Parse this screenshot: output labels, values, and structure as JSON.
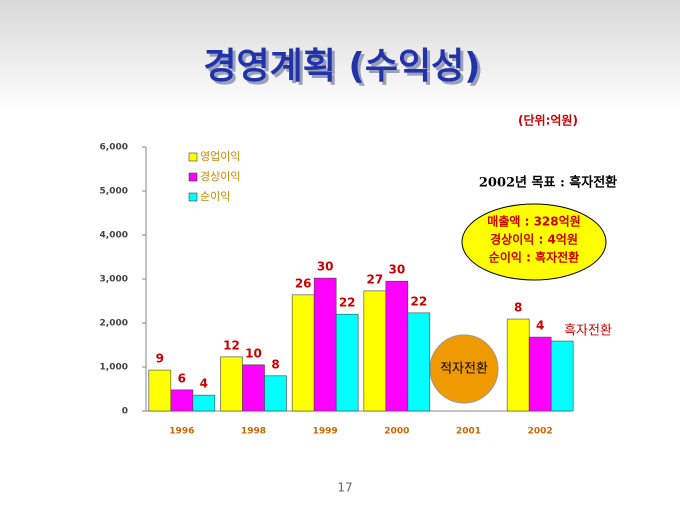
{
  "chart_data": {
    "type": "bar",
    "title": "경영계획 (수익성)",
    "unit_label": "(단위:억원)",
    "categories": [
      "1996",
      "1998",
      "1999",
      "2000",
      "2001",
      "2002"
    ],
    "series": [
      {
        "name": "영업이익",
        "color": "#ffff00",
        "values": [
          930,
          1230,
          2640,
          2730,
          null,
          2090
        ],
        "rates": [
          9,
          12,
          26,
          27,
          null,
          8
        ]
      },
      {
        "name": "경상이익",
        "color": "#ff00ff",
        "values": [
          480,
          1050,
          3020,
          2950,
          null,
          1680
        ],
        "rates": [
          6,
          10,
          30,
          30,
          null,
          4
        ]
      },
      {
        "name": "순이익",
        "color": "#00ffff",
        "values": [
          360,
          800,
          2200,
          2230,
          null,
          1590
        ],
        "rates": [
          4,
          8,
          22,
          22,
          null,
          null
        ]
      }
    ],
    "ylim": [
      0,
      6000
    ],
    "yticks": [
      0,
      {
        "value": 1000,
        "label": "1,000"
      },
      {
        "value": 2000,
        "label": "2,000"
      },
      {
        "value": 3000,
        "label": "3,000"
      },
      {
        "value": 4000,
        "label": "4,000"
      },
      {
        "value": 5000,
        "label": "5,000"
      },
      {
        "value": 6000,
        "label": "6,000"
      }
    ],
    "grid": false,
    "legend": "upper left",
    "annotations": {
      "target": "2002년 목표 : 흑자전환",
      "target_lines": [
        "매출액 : 328억원",
        "경상이익 : 4억원",
        "순이익 : 흑자전환"
      ],
      "loss_2001": "적자전환",
      "net_2002": "흑자전환"
    },
    "page_number": "17"
  }
}
